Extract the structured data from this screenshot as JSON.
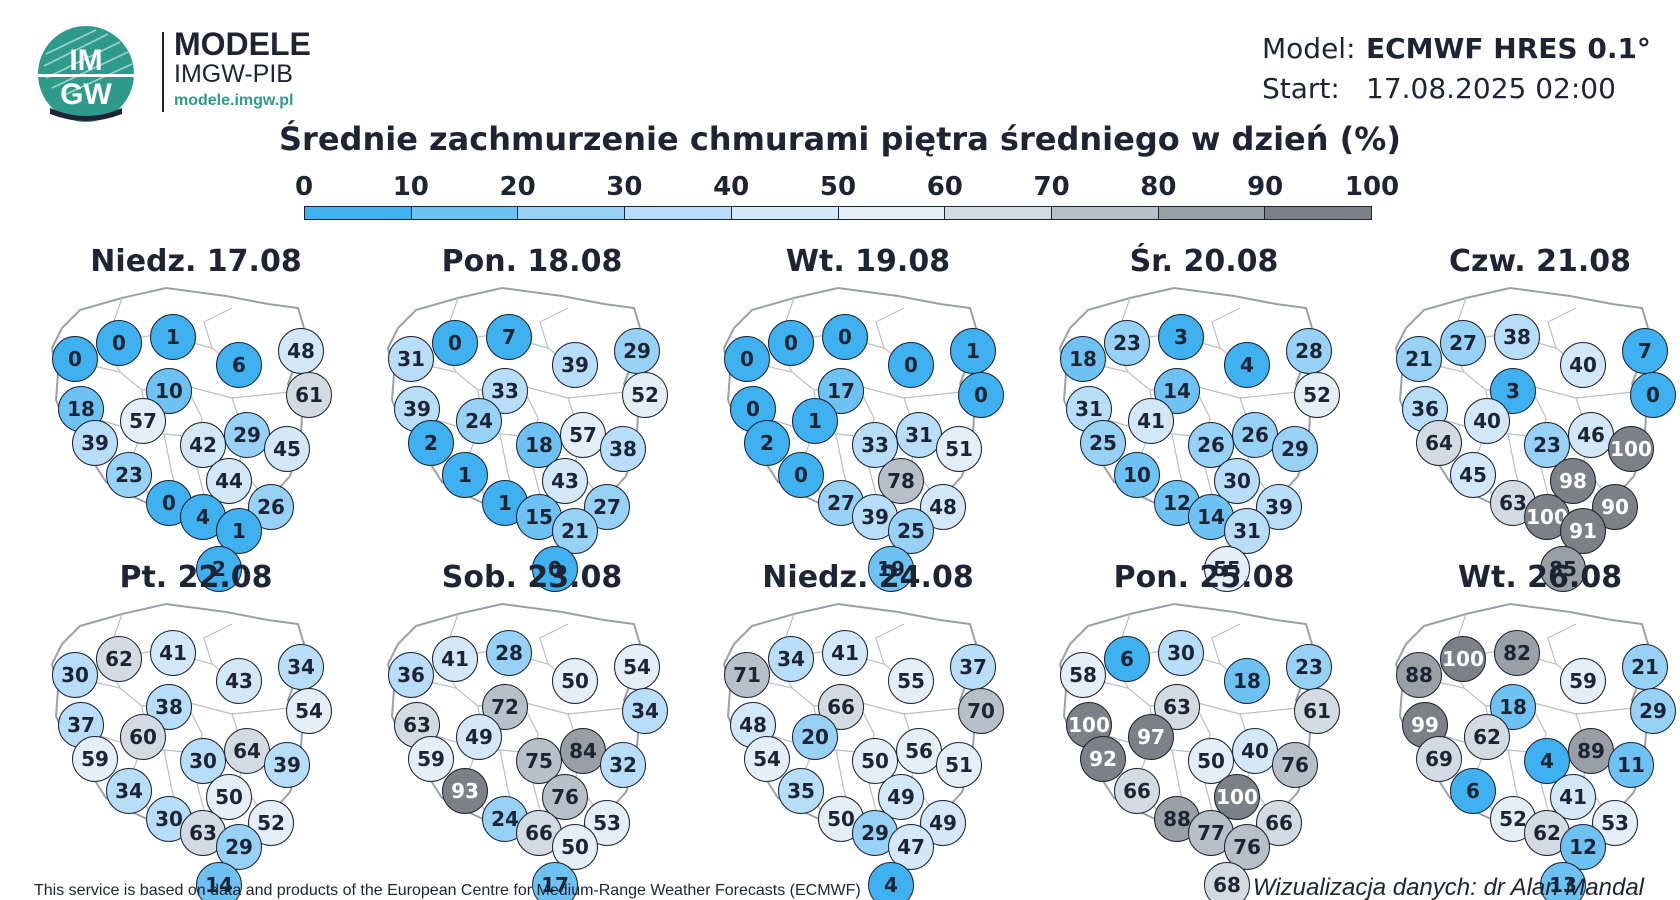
{
  "brand": {
    "logo_text_top": "IM",
    "logo_text_bottom": "GW",
    "name": "MODELE",
    "org": "IMGW-PIB",
    "url": "modele.imgw.pl"
  },
  "model_info": {
    "model_label": "Model:",
    "model_value": "ECMWF HRES 0.1°",
    "start_label": "Start:",
    "start_value": "17.08.2025 02:00"
  },
  "title": "Średnie zachmurzenie chmurami piętra średniego w dzień (%)",
  "scale": {
    "ticks": [
      "0",
      "10",
      "20",
      "30",
      "40",
      "50",
      "60",
      "70",
      "80",
      "90",
      "100"
    ],
    "colors": [
      "#3fb0f0",
      "#6ec1f3",
      "#97d1f6",
      "#b8ddf8",
      "#d2e8f9",
      "#e4eef7",
      "#d3dae2",
      "#b7bfc8",
      "#9a9fa6",
      "#7d8086"
    ]
  },
  "days": [
    {
      "label": "Niedz. 17.08",
      "values": [
        0,
        0,
        1,
        48,
        6,
        61,
        10,
        18,
        57,
        29,
        39,
        42,
        45,
        23,
        44,
        0,
        26,
        4,
        1,
        2
      ]
    },
    {
      "label": "Pon. 18.08",
      "values": [
        31,
        0,
        7,
        29,
        39,
        52,
        33,
        39,
        24,
        57,
        2,
        18,
        38,
        1,
        43,
        1,
        27,
        15,
        21,
        0
      ]
    },
    {
      "label": "Wt. 19.08",
      "values": [
        0,
        0,
        0,
        1,
        0,
        0,
        17,
        0,
        1,
        31,
        2,
        33,
        51,
        0,
        78,
        27,
        48,
        39,
        25,
        19
      ]
    },
    {
      "label": "Śr. 20.08",
      "values": [
        18,
        23,
        3,
        28,
        4,
        52,
        14,
        31,
        41,
        26,
        25,
        26,
        29,
        10,
        30,
        12,
        39,
        14,
        31,
        55
      ]
    },
    {
      "label": "Czw. 21.08",
      "values": [
        21,
        27,
        38,
        7,
        40,
        0,
        3,
        36,
        40,
        46,
        64,
        23,
        100,
        45,
        98,
        63,
        90,
        100,
        91,
        85
      ]
    },
    {
      "label": "Pt. 22.08",
      "values": [
        30,
        62,
        41,
        34,
        43,
        54,
        38,
        37,
        60,
        64,
        59,
        30,
        39,
        34,
        50,
        30,
        52,
        63,
        29,
        14
      ]
    },
    {
      "label": "Sob. 23.08",
      "values": [
        36,
        41,
        28,
        54,
        50,
        34,
        72,
        63,
        49,
        84,
        59,
        75,
        32,
        93,
        76,
        24,
        53,
        66,
        50,
        17
      ]
    },
    {
      "label": "Niedz. 24.08",
      "values": [
        71,
        34,
        41,
        37,
        55,
        70,
        66,
        48,
        20,
        56,
        54,
        50,
        51,
        35,
        49,
        50,
        49,
        29,
        47,
        4
      ]
    },
    {
      "label": "Pon. 25.08",
      "values": [
        58,
        6,
        30,
        23,
        18,
        61,
        63,
        100,
        97,
        40,
        92,
        50,
        76,
        66,
        100,
        88,
        66,
        77,
        76,
        68
      ]
    },
    {
      "label": "Wt. 26.08",
      "values": [
        88,
        100,
        82,
        21,
        59,
        29,
        18,
        99,
        62,
        89,
        69,
        4,
        11,
        6,
        41,
        52,
        53,
        62,
        12,
        13
      ]
    }
  ],
  "footer": {
    "credit": "This service is based on data and products of the European Centre for Medium-Range Weather Forecasts (ECMWF)",
    "author": "Wizualizacja danych: dr Alan Mandal"
  }
}
